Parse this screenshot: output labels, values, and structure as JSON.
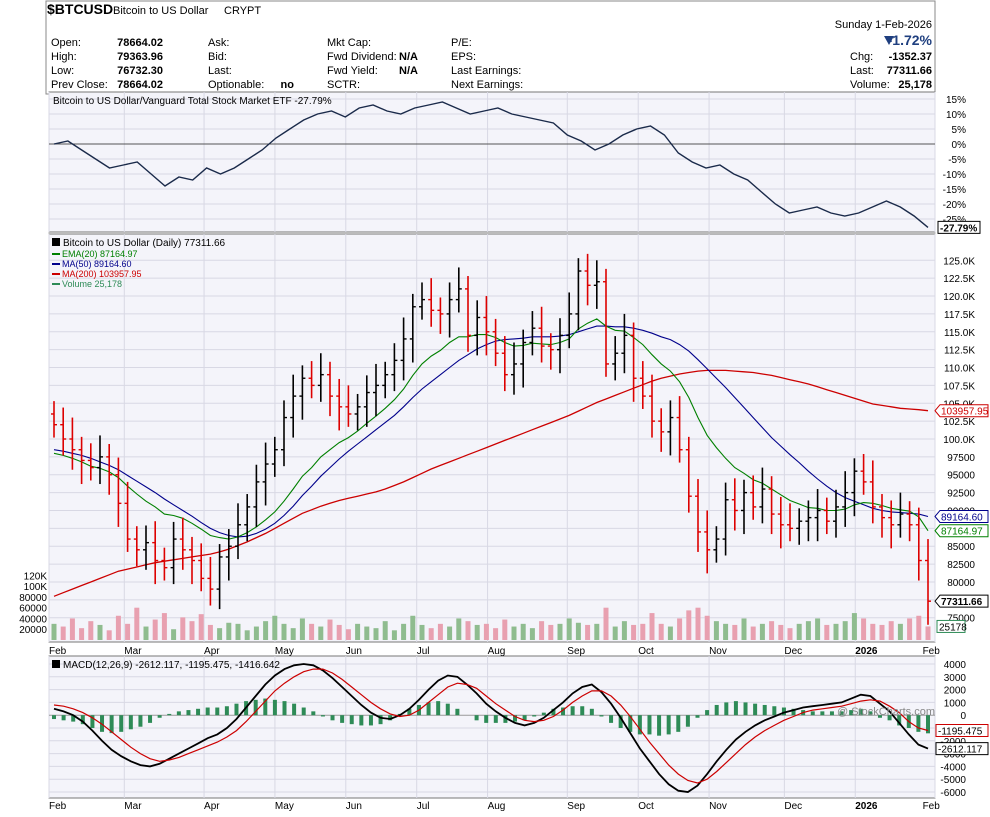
{
  "header": {
    "symbol": "$BTCUSD",
    "name": "Bitcoin to US Dollar",
    "exchange": "CRYPT",
    "watermark": "@ StockCharts.com",
    "date": "Sunday  1-Feb-2026",
    "change_pct": "-1.72%",
    "chg_label": "Chg:",
    "chg_value": "-1352.37",
    "last_label": "Last:",
    "last_value": "77311.66",
    "volume_label": "Volume:",
    "volume_value": "25,178",
    "stats": [
      {
        "label": "Open:",
        "value": "78664.02"
      },
      {
        "label": "High:",
        "value": "79363.96"
      },
      {
        "label": "Low:",
        "value": "76732.30"
      },
      {
        "label": "Prev Close:",
        "value": "78664.02"
      }
    ],
    "stats2": [
      {
        "label": "Ask:",
        "value": ""
      },
      {
        "label": "Bid:",
        "value": ""
      },
      {
        "label": "Last:",
        "value": ""
      },
      {
        "label": "Optionable:",
        "value": "no"
      }
    ],
    "stats3": [
      {
        "label": "Mkt Cap:",
        "value": ""
      },
      {
        "label": "Fwd Dividend:",
        "value": "N/A"
      },
      {
        "label": "Fwd Yield:",
        "value": "N/A"
      },
      {
        "label": "SCTR:",
        "value": ""
      }
    ],
    "stats4": [
      {
        "label": "P/E:"
      },
      {
        "label": "EPS:"
      },
      {
        "label": "Last Earnings:"
      },
      {
        "label": "Next Earnings:"
      }
    ]
  },
  "colors": {
    "up": "#000000",
    "down": "#dd0000",
    "ema20": "#008000",
    "ma50": "#00008b",
    "ma200": "#cc0000",
    "vol_up": "#8fbc8f",
    "vol_down": "#e8a0b0",
    "macd_line": "#000000",
    "signal_line": "#cc0000",
    "histogram": "#2e8b57",
    "panel_bg": "#f4f4fa"
  },
  "chart_data": [
    {
      "type": "line",
      "panel": "relative-strength",
      "title": "Bitcoin to US Dollar/Vanguard Total Stock Market ETF -27.79%",
      "ylim": [
        -28,
        16
      ],
      "y_ticks": [
        "15%",
        "10%",
        "5%",
        "0%",
        "-5%",
        "-10%",
        "-15%",
        "-20%",
        "-25%"
      ],
      "last_label": "-27.79%",
      "x_ticks": [
        "Feb",
        "Mar",
        "Apr",
        "May",
        "Jun",
        "Jul",
        "Aug",
        "Sep",
        "Oct",
        "Nov",
        "Dec",
        "2026",
        "Feb"
      ],
      "values": [
        0,
        1,
        -2,
        -5,
        -8,
        -7,
        -6,
        -10,
        -14,
        -11,
        -12,
        -8,
        -10,
        -8,
        -5,
        -2,
        2,
        5,
        8,
        10,
        11,
        9,
        12,
        13,
        11,
        10,
        12,
        13,
        14,
        12,
        10,
        11,
        12,
        10,
        9,
        8,
        7,
        3,
        1,
        -2,
        0,
        3,
        5,
        6,
        3,
        -3,
        -6,
        -8,
        -7,
        -10,
        -12,
        -16,
        -20,
        -23,
        -22,
        -21,
        -23,
        -24,
        -23,
        -21,
        -19,
        -21,
        -24,
        -27.79
      ]
    },
    {
      "type": "candlestick",
      "panel": "price",
      "title": "Bitcoin to US Dollar (Daily) 77311.66",
      "legend": [
        {
          "name": "EMA(20) 87164.97",
          "color": "#008000"
        },
        {
          "name": "MA(50) 89164.60",
          "color": "#00008b"
        },
        {
          "name": "MA(200) 103957.95",
          "color": "#cc0000"
        },
        {
          "name": "Volume 25,178",
          "color": "#2e8b57"
        }
      ],
      "ylim": [
        73000,
        127000
      ],
      "y_ticks": [
        "125.0K",
        "122.5K",
        "120.0K",
        "117.5K",
        "115.0K",
        "112.5K",
        "110.0K",
        "107.5K",
        "105.0K",
        "102.5K",
        "100.0K",
        "97500",
        "95000",
        "92500",
        "90000",
        "87500",
        "85000",
        "82500",
        "80000",
        "77500",
        "75000"
      ],
      "volume_ticks": [
        "120K",
        "100K",
        "80000",
        "60000",
        "40000",
        "20000"
      ],
      "flags": [
        {
          "text": "103957.95",
          "value": 103957.95,
          "color": "#cc0000"
        },
        {
          "text": "89164.60",
          "value": 89164.6,
          "color": "#00008b"
        },
        {
          "text": "87164.97",
          "value": 87164.97,
          "color": "#008000"
        },
        {
          "text": "77311.66",
          "value": 77311.66,
          "color": "#000000"
        }
      ],
      "volume_flag": "25178",
      "x_ticks": [
        "Feb",
        "Mar",
        "Apr",
        "May",
        "Jun",
        "Jul",
        "Aug",
        "Sep",
        "Oct",
        "Nov",
        "Dec",
        "2026",
        "Feb"
      ],
      "close": [
        102000,
        100000,
        98500,
        97000,
        96000,
        97500,
        95000,
        91000,
        86000,
        84500,
        85500,
        83000,
        82000,
        86000,
        84500,
        83000,
        80500,
        79000,
        83500,
        85000,
        88000,
        90500,
        94000,
        96500,
        98500,
        103000,
        106000,
        108500,
        107500,
        109000,
        106000,
        104500,
        103500,
        104500,
        106500,
        107500,
        109000,
        111000,
        114000,
        118500,
        119500,
        118000,
        117500,
        119500,
        121000,
        114500,
        117000,
        115000,
        112000,
        109000,
        110500,
        113500,
        115500,
        113000,
        112500,
        114500,
        117500,
        123500,
        121500,
        122000,
        110500,
        112000,
        114500,
        108500,
        106000,
        102500,
        101000,
        103000,
        98500,
        92000,
        87000,
        84500,
        86000,
        91500,
        90000,
        92500,
        90500,
        93000,
        89500,
        88000,
        87500,
        88500,
        89000,
        90000,
        88500,
        90500,
        92500,
        95500,
        94000,
        90500,
        89000,
        88000,
        89500,
        88000,
        83000,
        77311.66
      ],
      "ema20": [
        98000,
        97700,
        97300,
        96800,
        96200,
        95900,
        95400,
        94600,
        93400,
        92300,
        91300,
        90500,
        89500,
        89300,
        88900,
        88200,
        87400,
        86500,
        86200,
        86000,
        86300,
        86900,
        87700,
        88700,
        89800,
        91300,
        93000,
        94800,
        96000,
        97500,
        98500,
        99500,
        100200,
        101100,
        102200,
        103200,
        104300,
        105500,
        107000,
        108900,
        110500,
        111600,
        112400,
        113500,
        114300,
        114300,
        114600,
        114600,
        114200,
        113500,
        113000,
        113100,
        113400,
        113300,
        113200,
        113500,
        114000,
        115400,
        116200,
        116800,
        115800,
        115200,
        115100,
        114200,
        113200,
        111800,
        110500,
        109500,
        108000,
        105800,
        103000,
        100500,
        98800,
        97300,
        96000,
        95200,
        94300,
        93800,
        93000,
        92200,
        91400,
        90900,
        90400,
        90300,
        90000,
        90000,
        90200,
        90800,
        91100,
        91000,
        90700,
        90300,
        90100,
        89900,
        89100,
        87164.97
      ],
      "ma50": [
        98500,
        98300,
        98000,
        97700,
        97300,
        96800,
        96300,
        95700,
        94900,
        94100,
        93300,
        92500,
        91600,
        90800,
        90000,
        89200,
        88300,
        87500,
        86900,
        86500,
        86300,
        86400,
        86800,
        87400,
        88200,
        89300,
        90600,
        92100,
        93400,
        94800,
        96000,
        97200,
        98300,
        99300,
        100300,
        101300,
        102300,
        103300,
        104500,
        105800,
        107000,
        108000,
        109000,
        110000,
        111000,
        111800,
        112600,
        113200,
        113700,
        113900,
        114000,
        114100,
        114300,
        114300,
        114300,
        114400,
        114600,
        115000,
        115400,
        115800,
        115800,
        115700,
        115700,
        115500,
        115200,
        114800,
        114300,
        113900,
        113200,
        112300,
        111100,
        109800,
        108500,
        107200,
        105800,
        104400,
        103000,
        101600,
        100200,
        99000,
        97800,
        96700,
        95500,
        94400,
        93400,
        92500,
        91800,
        91300,
        90800,
        90300,
        90000,
        89800,
        89700,
        89600,
        89500,
        89164.6
      ],
      "ma200": [
        78000,
        78500,
        79000,
        79500,
        80000,
        80500,
        81000,
        81500,
        81800,
        82100,
        82400,
        82700,
        82900,
        83100,
        83300,
        83500,
        83700,
        83900,
        84200,
        84600,
        85100,
        85600,
        86200,
        86800,
        87500,
        88200,
        88900,
        89600,
        90100,
        90600,
        91000,
        91400,
        91700,
        92000,
        92300,
        92600,
        93000,
        93500,
        94000,
        94600,
        95200,
        95800,
        96300,
        96800,
        97300,
        97800,
        98300,
        98800,
        99300,
        99800,
        100300,
        100800,
        101300,
        101800,
        102300,
        102800,
        103300,
        103900,
        104500,
        105100,
        105600,
        106100,
        106600,
        107100,
        107600,
        108100,
        108500,
        108800,
        109100,
        109300,
        109500,
        109600,
        109600,
        109600,
        109500,
        109400,
        109300,
        109100,
        108900,
        108600,
        108300,
        108000,
        107700,
        107300,
        106900,
        106500,
        106100,
        105700,
        105300,
        104900,
        104700,
        104500,
        104300,
        104200,
        104100,
        103957.95
      ],
      "volume": [
        30000,
        25000,
        40000,
        22000,
        35000,
        28000,
        18000,
        45000,
        30000,
        60000,
        25000,
        38000,
        50000,
        20000,
        42000,
        35000,
        48000,
        28000,
        22000,
        32000,
        30000,
        18000,
        25000,
        35000,
        45000,
        30000,
        22000,
        40000,
        30000,
        25000,
        38000,
        28000,
        20000,
        30000,
        25000,
        22000,
        35000,
        18000,
        30000,
        45000,
        28000,
        22000,
        30000,
        25000,
        40000,
        35000,
        28000,
        30000,
        22000,
        38000,
        25000,
        30000,
        22000,
        35000,
        28000,
        30000,
        40000,
        32000,
        28000,
        30000,
        60000,
        25000,
        35000,
        28000,
        30000,
        50000,
        30000,
        25000,
        40000,
        55000,
        60000,
        45000,
        35000,
        30000,
        28000,
        40000,
        25000,
        30000,
        35000,
        28000,
        22000,
        30000,
        35000,
        40000,
        28000,
        30000,
        35000,
        50000,
        40000,
        30000,
        28000,
        35000,
        30000,
        40000,
        45000,
        25178
      ]
    },
    {
      "type": "line",
      "panel": "macd",
      "title": "MACD(12,26,9) -2612.117, -1195.475, -1416.642",
      "ylim": [
        -7000,
        5000
      ],
      "y_ticks": [
        "4000",
        "3000",
        "2000",
        "1000",
        "0",
        "-1000",
        "-2000",
        "-3000",
        "-4000",
        "-5000",
        "-6000"
      ],
      "flags": [
        "-1195.475",
        "-2612.117"
      ],
      "x_ticks": [
        "Feb",
        "Mar",
        "Apr",
        "May",
        "Jun",
        "Jul",
        "Aug",
        "Sep",
        "Oct",
        "Nov",
        "Dec",
        "2026",
        "Feb"
      ],
      "series": [
        {
          "values": [
            500,
            300,
            0,
            -500,
            -1200,
            -2000,
            -2700,
            -3200,
            -3600,
            -3900,
            -4000,
            -3800,
            -3400,
            -3000,
            -2600,
            -2200,
            -1800,
            -1500,
            -1000,
            -300,
            600,
            1500,
            2400,
            3100,
            3600,
            3900,
            4000,
            3900,
            3500,
            2900,
            2200,
            1500,
            800,
            200,
            -200,
            -300,
            0,
            500,
            1200,
            2000,
            2700,
            3100,
            3000,
            2400,
            1700,
            900,
            300,
            -200,
            -600,
            -800,
            -600,
            -200,
            400,
            1000,
            1700,
            2200,
            2400,
            1800,
            900,
            -200,
            -1400,
            -2600,
            -3600,
            -4600,
            -5400,
            -5900,
            -6000,
            -5500,
            -4600,
            -3600,
            -2700,
            -1900,
            -1300,
            -800,
            -400,
            -100,
            200,
            400,
            600,
            700,
            800,
            900,
            1000,
            1300,
            1600,
            1500,
            900,
            300,
            -600,
            -1500,
            -2300,
            -2612.117
          ]
        },
        {
          "values": [
            800,
            700,
            500,
            200,
            -200,
            -700,
            -1300,
            -1900,
            -2500,
            -3000,
            -3400,
            -3600,
            -3500,
            -3300,
            -3000,
            -2700,
            -2400,
            -2100,
            -1700,
            -1200,
            -500,
            300,
            1100,
            1900,
            2500,
            3000,
            3400,
            3600,
            3600,
            3300,
            2800,
            2200,
            1600,
            1000,
            500,
            100,
            -100,
            0,
            400,
            1000,
            1600,
            2200,
            2500,
            2400,
            2100,
            1500,
            900,
            400,
            -100,
            -400,
            -500,
            -400,
            -100,
            400,
            1000,
            1500,
            1900,
            1900,
            1500,
            800,
            -100,
            -1100,
            -2100,
            -3000,
            -3900,
            -4600,
            -5100,
            -5300,
            -5000,
            -4400,
            -3700,
            -3000,
            -2300,
            -1700,
            -1200,
            -800,
            -400,
            -100,
            200,
            400,
            500,
            600,
            700,
            900,
            1100,
            1200,
            1100,
            700,
            200,
            -500,
            -1000,
            -1195.475
          ]
        }
      ],
      "histogram": [
        -300,
        -400,
        -500,
        -700,
        -1000,
        -1300,
        -1400,
        -1300,
        -1100,
        -900,
        -600,
        -200,
        100,
        300,
        400,
        500,
        600,
        600,
        700,
        900,
        1100,
        1200,
        1300,
        1200,
        1100,
        900,
        600,
        300,
        -100,
        -400,
        -600,
        -700,
        -800,
        -800,
        -700,
        -400,
        100,
        500,
        800,
        1000,
        1100,
        900,
        500,
        0,
        -400,
        -600,
        -600,
        -600,
        -500,
        -400,
        -100,
        200,
        500,
        600,
        700,
        700,
        500,
        -100,
        -600,
        -1000,
        -1300,
        -1500,
        -1500,
        -1600,
        -1500,
        -1300,
        -900,
        -200,
        400,
        800,
        1000,
        1100,
        1000,
        900,
        800,
        700,
        600,
        500,
        400,
        300,
        300,
        300,
        300,
        400,
        500,
        300,
        -200,
        -400,
        -800,
        -1000,
        -1300,
        -1416.642
      ]
    }
  ]
}
